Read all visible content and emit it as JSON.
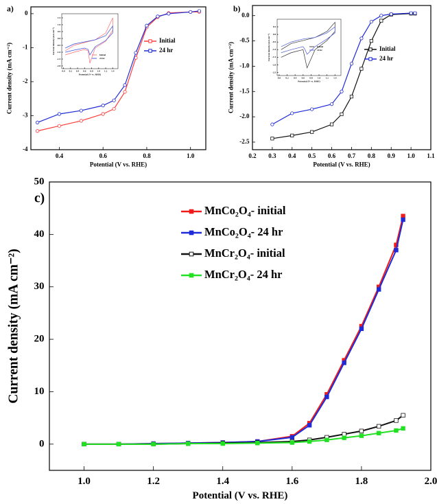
{
  "chart_data": [
    {
      "type": "line",
      "label": "a)",
      "xlabel": "Potential (V vs. RHE)",
      "ylabel": "Current density (mA cm⁻²)",
      "xlim": [
        0.27,
        1.07
      ],
      "ylim": [
        -4,
        0.2
      ],
      "xticks": [
        0.4,
        0.6,
        0.8,
        {
          "value": 1.0,
          "label": "1.0"
        }
      ],
      "yticks": [
        0,
        -1,
        -2,
        -3,
        -4
      ],
      "x": [
        0.3,
        0.4,
        0.5,
        0.6,
        0.65,
        0.7,
        0.75,
        0.8,
        0.85,
        0.9,
        1.0,
        1.04
      ],
      "series": [
        {
          "name": "Initial",
          "color": "#ff3b3b",
          "marker": "open-circle",
          "values": [
            -3.45,
            -3.3,
            -3.15,
            -2.95,
            -2.8,
            -2.3,
            -1.3,
            -0.4,
            -0.1,
            0.02,
            0.05,
            0.05
          ]
        },
        {
          "name": "24 hr",
          "color": "#1f2bd6",
          "marker": "open-circle",
          "values": [
            -3.2,
            -2.95,
            -2.85,
            -2.7,
            -2.55,
            -2.1,
            -1.15,
            -0.35,
            -0.08,
            0.0,
            0.05,
            0.08
          ]
        }
      ]
    },
    {
      "type": "line",
      "xlabel": "Potential (V vs. RHE)",
      "ylabel": "Current density (mA cm⁻²)",
      "xlim": [
        -0.05,
        1.55
      ],
      "ylim": [
        -2.2,
        1.8
      ],
      "xticks": [
        {
          "value": 0.0,
          "label": "0.0"
        },
        0.2,
        0.4,
        0.6,
        0.8,
        {
          "value": 1.0,
          "label": "1.0"
        },
        1.2,
        1.4
      ],
      "yticks": [
        1.5,
        {
          "value": 1.0,
          "label": "1.0"
        },
        0.5,
        {
          "value": 0.0,
          "label": "0.0"
        },
        -0.5,
        {
          "value": -1.0,
          "label": "-1.0"
        },
        -1.5,
        {
          "value": -2.0,
          "label": "-2.0"
        }
      ],
      "x": [
        0.05,
        0.3,
        0.6,
        0.7,
        0.75,
        0.9,
        1.2,
        1.4,
        1.4,
        1.2,
        0.9,
        0.6,
        0.3,
        0.05
      ],
      "series": [
        {
          "name": "Initial",
          "color": "#ff6b6b",
          "values": [
            -1.2,
            -1.0,
            -0.8,
            -0.9,
            -1.8,
            -0.7,
            -0.2,
            0.6,
            1.5,
            0.4,
            -0.1,
            -0.3,
            -0.5,
            -0.9
          ]
        },
        {
          "name": "24 hr",
          "color": "#3b4fe0",
          "values": [
            -1.0,
            -0.85,
            -0.7,
            -0.8,
            -1.2,
            -0.6,
            -0.15,
            0.4,
            0.9,
            0.2,
            -0.1,
            -0.25,
            -0.4,
            -0.7
          ]
        }
      ]
    },
    {
      "type": "line",
      "label": "b)",
      "xlabel": "Potential (V vs. RHE)",
      "ylabel": "Current density (mA cm⁻²)",
      "xlim": [
        0.2,
        1.1
      ],
      "ylim": [
        -2.65,
        0.2
      ],
      "xticks": [
        0.2,
        0.3,
        0.4,
        0.5,
        0.6,
        0.7,
        0.8,
        0.9,
        {
          "value": 1.0,
          "label": "1.0"
        },
        1.1
      ],
      "yticks": [
        {
          "value": 0.0,
          "label": "0.0"
        },
        -0.5,
        {
          "value": -1.0,
          "label": "-1.0"
        },
        -1.5,
        {
          "value": -2.0,
          "label": "-2.0"
        },
        -2.5
      ],
      "x": [
        0.3,
        0.4,
        0.5,
        0.6,
        0.65,
        0.7,
        0.75,
        0.8,
        0.85,
        0.9,
        1.0,
        1.02
      ],
      "series": [
        {
          "name": "Initial",
          "color": "#111111",
          "marker": "open-square",
          "values": [
            -2.43,
            -2.37,
            -2.3,
            -2.15,
            -1.95,
            -1.6,
            -1.05,
            -0.5,
            -0.1,
            0.02,
            0.04,
            0.04
          ]
        },
        {
          "name": "24 hr",
          "color": "#1f2bd6",
          "marker": "open-circle",
          "values": [
            -2.15,
            -1.93,
            -1.85,
            -1.75,
            -1.5,
            -0.95,
            -0.45,
            -0.12,
            0.0,
            0.03,
            0.05,
            0.05
          ]
        }
      ]
    },
    {
      "type": "line",
      "xlabel": "Potential (V vs. RHE)",
      "ylabel": "Current density (mA cm⁻²)",
      "xlim": [
        -0.05,
        1.55
      ],
      "ylim": [
        -2.7,
        1.0
      ],
      "xticks": [
        {
          "value": 0.0,
          "label": "0.0"
        },
        0.2,
        0.4,
        0.6,
        0.8,
        {
          "value": 1.0,
          "label": "1.0"
        },
        1.2,
        1.4
      ],
      "yticks": [
        0.5,
        {
          "value": 0.0,
          "label": "0.0"
        },
        -0.5,
        {
          "value": -1.0,
          "label": "-1.0"
        },
        -1.5,
        {
          "value": -2.0,
          "label": "-2.0"
        },
        -2.5
      ],
      "x": [
        0.05,
        0.3,
        0.6,
        0.65,
        0.7,
        0.9,
        1.2,
        1.4,
        1.4,
        1.2,
        0.9,
        0.6,
        0.3,
        0.05
      ],
      "series": [
        {
          "name": "Initial",
          "color": "#333333",
          "values": [
            -1.5,
            -1.2,
            -1.0,
            -1.6,
            -2.2,
            -1.0,
            -0.4,
            0.2,
            0.8,
            0.2,
            -0.2,
            -0.4,
            -0.6,
            -1.0
          ]
        },
        {
          "name": "24 hr",
          "color": "#4a5ad8",
          "values": [
            -1.2,
            -1.0,
            -0.8,
            -1.0,
            -1.3,
            -0.8,
            -0.3,
            0.1,
            0.5,
            0.1,
            -0.2,
            -0.3,
            -0.5,
            -0.8
          ]
        }
      ]
    },
    {
      "type": "line",
      "label": "c)",
      "xlabel": "Potential (V vs. RHE)",
      "ylabel": "Current density (mA cm⁻²)",
      "xlim": [
        0.9,
        2.0
      ],
      "ylim": [
        -5,
        50
      ],
      "xticks": [
        {
          "value": 1.0,
          "label": "1.0"
        },
        1.2,
        1.4,
        1.6,
        1.8,
        {
          "value": 2.0,
          "label": "2.0"
        }
      ],
      "yticks": [
        0,
        10,
        20,
        30,
        40,
        50
      ],
      "x": [
        1.0,
        1.1,
        1.2,
        1.3,
        1.4,
        1.5,
        1.6,
        1.65,
        1.7,
        1.75,
        1.8,
        1.85,
        1.9,
        1.92
      ],
      "series": [
        {
          "name": "MnCo₂O₄- initial",
          "color": "#ee1c1c",
          "marker": "square",
          "values": [
            0,
            0,
            0.1,
            0.2,
            0.3,
            0.5,
            1.5,
            4,
            9.5,
            16,
            22.5,
            30,
            38,
            43.5
          ]
        },
        {
          "name": "MnCo₂O₄- 24 hr",
          "color": "#1f2bd6",
          "marker": "square",
          "values": [
            0,
            0,
            0.1,
            0.2,
            0.3,
            0.5,
            1.3,
            3.6,
            9,
            15.5,
            22,
            29.5,
            37,
            42.8
          ]
        },
        {
          "name": "MnCr₂O₄- initial",
          "color": "#111111",
          "marker": "open-square",
          "values": [
            0,
            0,
            0,
            0.1,
            0.2,
            0.3,
            0.5,
            0.8,
            1.3,
            1.9,
            2.5,
            3.4,
            4.5,
            5.5
          ]
        },
        {
          "name": "MnCr₂O₄- 24 hr",
          "color": "#22e022",
          "marker": "square",
          "values": [
            0,
            0,
            0,
            0.1,
            0.1,
            0.2,
            0.3,
            0.5,
            0.8,
            1.2,
            1.6,
            2.1,
            2.6,
            3.0
          ]
        }
      ]
    }
  ]
}
